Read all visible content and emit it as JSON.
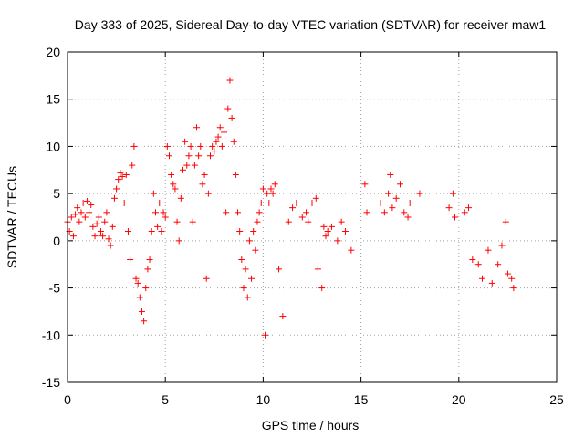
{
  "chart_data": {
    "type": "scatter",
    "title": "Day 333 of 2025, Sidereal Day-to-day VTEC variation (SDTVAR) for receiver maw1",
    "xlabel": "GPS time / hours",
    "ylabel": "SDTVAR / TECUs",
    "xlim": [
      0,
      25
    ],
    "ylim": [
      -15,
      20
    ],
    "xticks": [
      0,
      5,
      10,
      15,
      20,
      25
    ],
    "yticks": [
      -15,
      -10,
      -5,
      0,
      5,
      10,
      15,
      20
    ],
    "xtick_labels": [
      "0",
      "5",
      "10",
      "15",
      "20",
      "25"
    ],
    "ytick_labels": [
      "-15",
      "-10",
      "-5",
      "0",
      "5",
      "10",
      "15",
      "20"
    ],
    "grid": true,
    "marker": "+",
    "color": "#ff0000",
    "series": [
      {
        "name": "maw1",
        "points": [
          [
            0.0,
            2.0
          ],
          [
            0.1,
            1.0
          ],
          [
            0.2,
            2.5
          ],
          [
            0.3,
            0.5
          ],
          [
            0.4,
            2.8
          ],
          [
            0.5,
            3.5
          ],
          [
            0.6,
            2.0
          ],
          [
            0.7,
            3.0
          ],
          [
            0.8,
            4.0
          ],
          [
            0.9,
            2.5
          ],
          [
            1.0,
            4.2
          ],
          [
            1.1,
            3.0
          ],
          [
            1.2,
            3.8
          ],
          [
            1.3,
            1.5
          ],
          [
            1.4,
            0.5
          ],
          [
            1.5,
            1.8
          ],
          [
            1.6,
            2.5
          ],
          [
            1.7,
            1.0
          ],
          [
            1.8,
            0.5
          ],
          [
            1.9,
            2.0
          ],
          [
            2.0,
            3.0
          ],
          [
            2.1,
            0.2
          ],
          [
            2.2,
            -0.5
          ],
          [
            2.3,
            1.5
          ],
          [
            2.4,
            4.5
          ],
          [
            2.5,
            5.5
          ],
          [
            2.6,
            6.5
          ],
          [
            2.7,
            7.2
          ],
          [
            2.8,
            6.8
          ],
          [
            2.9,
            4.0
          ],
          [
            3.0,
            7.0
          ],
          [
            3.1,
            1.0
          ],
          [
            3.2,
            -2.0
          ],
          [
            3.3,
            8.0
          ],
          [
            3.4,
            10.0
          ],
          [
            3.5,
            -4.0
          ],
          [
            3.6,
            -4.5
          ],
          [
            3.7,
            -6.0
          ],
          [
            3.8,
            -7.5
          ],
          [
            3.9,
            -8.5
          ],
          [
            4.0,
            -5.0
          ],
          [
            4.1,
            -3.0
          ],
          [
            4.2,
            -2.0
          ],
          [
            4.3,
            1.0
          ],
          [
            4.4,
            5.0
          ],
          [
            4.5,
            3.0
          ],
          [
            4.6,
            1.5
          ],
          [
            4.7,
            4.0
          ],
          [
            4.8,
            1.0
          ],
          [
            4.9,
            3.0
          ],
          [
            5.0,
            2.5
          ],
          [
            5.1,
            10.0
          ],
          [
            5.2,
            9.0
          ],
          [
            5.3,
            7.0
          ],
          [
            5.4,
            6.0
          ],
          [
            5.5,
            5.5
          ],
          [
            5.6,
            2.0
          ],
          [
            5.7,
            0.0
          ],
          [
            5.8,
            4.5
          ],
          [
            5.9,
            7.5
          ],
          [
            6.0,
            10.5
          ],
          [
            6.1,
            8.0
          ],
          [
            6.2,
            9.0
          ],
          [
            6.3,
            10.0
          ],
          [
            6.4,
            2.0
          ],
          [
            6.5,
            8.0
          ],
          [
            6.6,
            12.0
          ],
          [
            6.7,
            9.0
          ],
          [
            6.8,
            10.0
          ],
          [
            6.9,
            6.0
          ],
          [
            7.0,
            7.0
          ],
          [
            7.1,
            -4.0
          ],
          [
            7.2,
            5.0
          ],
          [
            7.3,
            9.0
          ],
          [
            7.4,
            10.0
          ],
          [
            7.5,
            9.5
          ],
          [
            7.6,
            10.5
          ],
          [
            7.7,
            11.0
          ],
          [
            7.8,
            12.0
          ],
          [
            7.9,
            10.0
          ],
          [
            8.0,
            11.5
          ],
          [
            8.1,
            3.0
          ],
          [
            8.2,
            14.0
          ],
          [
            8.3,
            17.0
          ],
          [
            8.4,
            13.0
          ],
          [
            8.5,
            10.5
          ],
          [
            8.6,
            7.0
          ],
          [
            8.7,
            3.0
          ],
          [
            8.8,
            1.0
          ],
          [
            8.9,
            -2.0
          ],
          [
            9.0,
            -5.0
          ],
          [
            9.1,
            -3.0
          ],
          [
            9.2,
            -6.0
          ],
          [
            9.3,
            0.0
          ],
          [
            9.4,
            -4.0
          ],
          [
            9.5,
            1.0
          ],
          [
            9.6,
            -1.0
          ],
          [
            9.7,
            2.0
          ],
          [
            9.8,
            3.0
          ],
          [
            9.9,
            4.0
          ],
          [
            10.0,
            5.5
          ],
          [
            10.1,
            -10.0
          ],
          [
            10.2,
            5.0
          ],
          [
            10.3,
            4.0
          ],
          [
            10.4,
            5.5
          ],
          [
            10.5,
            5.0
          ],
          [
            10.6,
            6.0
          ],
          [
            10.8,
            -3.0
          ],
          [
            11.0,
            -8.0
          ],
          [
            11.3,
            2.0
          ],
          [
            11.5,
            3.5
          ],
          [
            11.7,
            4.0
          ],
          [
            12.0,
            2.5
          ],
          [
            12.2,
            3.0
          ],
          [
            12.3,
            2.0
          ],
          [
            12.5,
            4.0
          ],
          [
            12.7,
            4.5
          ],
          [
            12.8,
            -3.0
          ],
          [
            13.0,
            -5.0
          ],
          [
            13.1,
            1.5
          ],
          [
            13.2,
            0.5
          ],
          [
            13.3,
            1.0
          ],
          [
            13.5,
            1.5
          ],
          [
            13.8,
            0.0
          ],
          [
            14.0,
            2.0
          ],
          [
            14.2,
            1.0
          ],
          [
            14.5,
            -1.0
          ],
          [
            15.2,
            6.0
          ],
          [
            15.3,
            3.0
          ],
          [
            16.0,
            4.0
          ],
          [
            16.2,
            3.0
          ],
          [
            16.4,
            5.0
          ],
          [
            16.5,
            7.0
          ],
          [
            16.6,
            3.5
          ],
          [
            16.8,
            4.5
          ],
          [
            17.0,
            6.0
          ],
          [
            17.2,
            3.0
          ],
          [
            17.4,
            2.5
          ],
          [
            17.5,
            4.0
          ],
          [
            18.0,
            5.0
          ],
          [
            19.5,
            3.5
          ],
          [
            19.7,
            5.0
          ],
          [
            19.8,
            2.5
          ],
          [
            20.3,
            3.0
          ],
          [
            20.5,
            3.5
          ],
          [
            20.7,
            -2.0
          ],
          [
            21.0,
            -2.5
          ],
          [
            21.2,
            -4.0
          ],
          [
            21.5,
            -1.0
          ],
          [
            21.7,
            -4.5
          ],
          [
            22.0,
            -2.5
          ],
          [
            22.2,
            -0.5
          ],
          [
            22.4,
            2.0
          ],
          [
            22.5,
            -3.5
          ],
          [
            22.7,
            -4.0
          ],
          [
            22.8,
            -5.0
          ]
        ]
      }
    ]
  }
}
